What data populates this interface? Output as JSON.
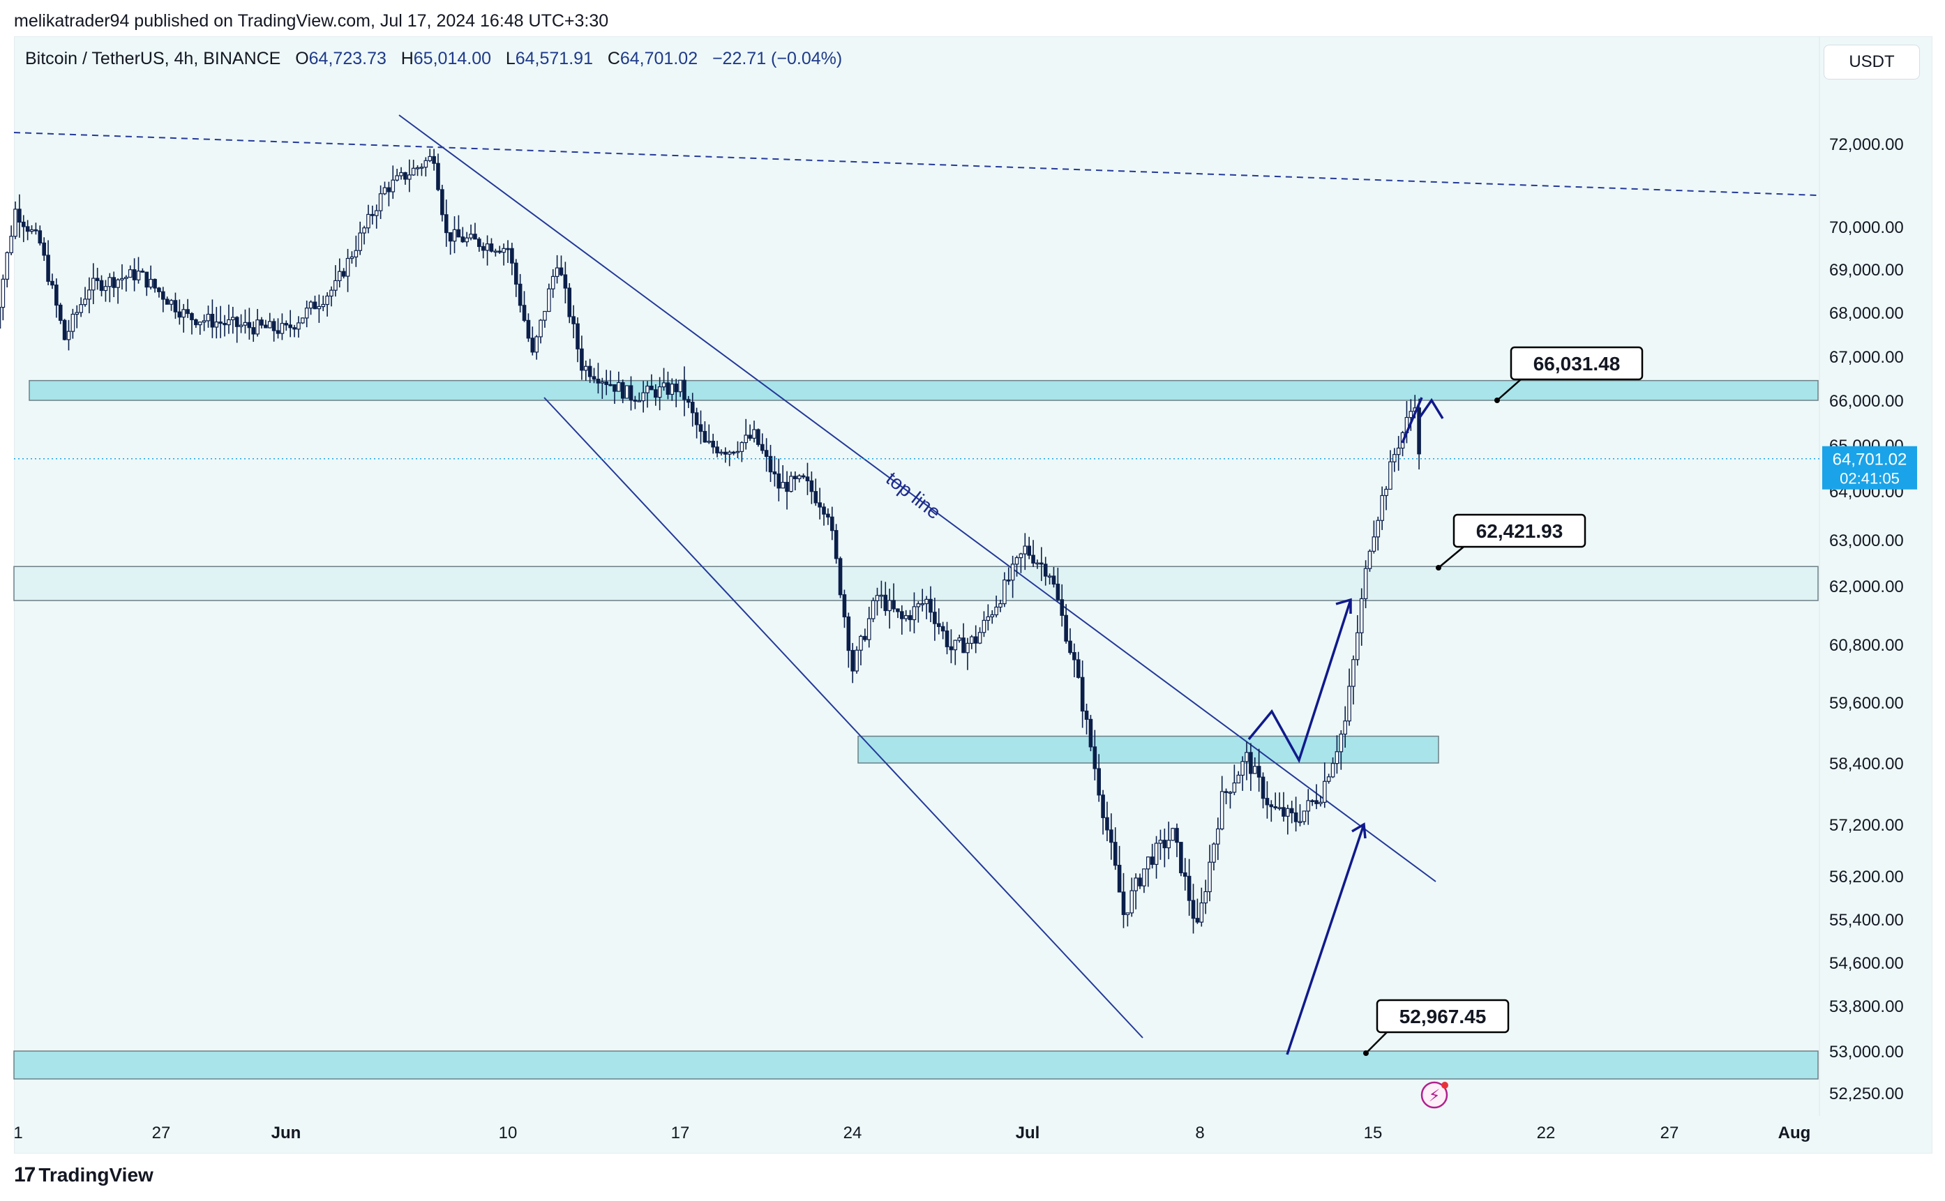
{
  "header": {
    "published": "melikatrader94 published on TradingView.com, Jul 17, 2024 16:48 UTC+3:30"
  },
  "symbol_bar": {
    "symbol": "Bitcoin / TetherUS, 4h, BINANCE",
    "open_label": "O",
    "open": "64,723.73",
    "high_label": "H",
    "high": "65,014.00",
    "low_label": "L",
    "low": "64,571.91",
    "close_label": "C",
    "close": "64,701.02",
    "change": "−22.71 (−0.04%)"
  },
  "currency_button": "USDT",
  "footer": {
    "brand": "TradingView",
    "brand_icon": "tradingview-logo-icon"
  },
  "colors": {
    "up_candle": "#ffffff",
    "down_candle": "#0b1f4a",
    "zone_fill": "#a8e4ea",
    "zone_fill_light": "#dff3f5",
    "trendline": "#23389a",
    "price_tag": "#1aa3e8",
    "plot_bg": "#eef8f8"
  },
  "chart_data": {
    "type": "candlestick",
    "title": "",
    "symbol": "BTCUSDT",
    "interval": "4h",
    "x_ticks": [
      "1",
      "27",
      "Jun",
      "10",
      "17",
      "24",
      "Jul",
      "8",
      "15",
      "22",
      "27",
      "Aug"
    ],
    "y_ticks": [
      "72,000.00",
      "70,000.00",
      "69,000.00",
      "68,000.00",
      "67,000.00",
      "66,000.00",
      "65,000.00",
      "64,000.00",
      "63,000.00",
      "62,000.00",
      "60,800.00",
      "59,600.00",
      "58,400.00",
      "57,200.00",
      "56,200.00",
      "55,400.00",
      "54,600.00",
      "53,800.00",
      "53,000.00",
      "52,250.00"
    ],
    "ylim": [
      52000,
      72700
    ],
    "current_price": {
      "value": "64,701.02",
      "countdown": "02:41:05"
    },
    "price_path": [
      [
        "2024-05-20",
        67200
      ],
      [
        "2024-05-21",
        70400
      ],
      [
        "2024-05-22",
        69600
      ],
      [
        "2024-05-23",
        67400
      ],
      [
        "2024-05-24",
        68600
      ],
      [
        "2024-05-26",
        68900
      ],
      [
        "2024-05-28",
        67900
      ],
      [
        "2024-05-30",
        67700
      ],
      [
        "2024-06-01",
        67600
      ],
      [
        "2024-06-03",
        68600
      ],
      [
        "2024-06-05",
        70900
      ],
      [
        "2024-06-07",
        71700
      ],
      [
        "2024-06-07T12",
        69800
      ],
      [
        "2024-06-09",
        69600
      ],
      [
        "2024-06-10",
        69500
      ],
      [
        "2024-06-11",
        67000
      ],
      [
        "2024-06-12",
        69200
      ],
      [
        "2024-06-13",
        66800
      ],
      [
        "2024-06-15",
        66100
      ],
      [
        "2024-06-17",
        66300
      ],
      [
        "2024-06-18",
        65000
      ],
      [
        "2024-06-19",
        64900
      ],
      [
        "2024-06-20",
        65200
      ],
      [
        "2024-06-21",
        64100
      ],
      [
        "2024-06-22",
        64200
      ],
      [
        "2024-06-23",
        63600
      ],
      [
        "2024-06-24",
        60300
      ],
      [
        "2024-06-25",
        61800
      ],
      [
        "2024-06-26",
        61300
      ],
      [
        "2024-06-27",
        61700
      ],
      [
        "2024-06-28",
        60700
      ],
      [
        "2024-06-29",
        60900
      ],
      [
        "2024-06-30",
        61800
      ],
      [
        "2024-07-01",
        62800
      ],
      [
        "2024-07-02",
        62300
      ],
      [
        "2024-07-03",
        60400
      ],
      [
        "2024-07-04",
        57900
      ],
      [
        "2024-07-05",
        55500
      ],
      [
        "2024-07-06",
        56500
      ],
      [
        "2024-07-07",
        57000
      ],
      [
        "2024-07-08",
        55200
      ],
      [
        "2024-07-09",
        57700
      ],
      [
        "2024-07-10",
        58500
      ],
      [
        "2024-07-11",
        57500
      ],
      [
        "2024-07-12",
        57300
      ],
      [
        "2024-07-13",
        57800
      ],
      [
        "2024-07-14",
        59200
      ],
      [
        "2024-07-15",
        62900
      ],
      [
        "2024-07-16",
        64800
      ],
      [
        "2024-07-16T20",
        66000
      ],
      [
        "2024-07-17",
        64701
      ]
    ],
    "zones": [
      {
        "name": "resistance-66000",
        "from": 66000,
        "to": 66450,
        "style": "strong"
      },
      {
        "name": "resistance-62400",
        "from": 61700,
        "to": 62420,
        "style": "light"
      },
      {
        "name": "support-58400",
        "from": 58400,
        "to": 58930,
        "style": "strong"
      },
      {
        "name": "support-53000",
        "from": 52500,
        "to": 53000,
        "style": "strong"
      }
    ],
    "price_labels": [
      "66,031.48",
      "62,421.93",
      "52,967.45"
    ],
    "annotations": [
      {
        "text": "top line"
      }
    ]
  }
}
